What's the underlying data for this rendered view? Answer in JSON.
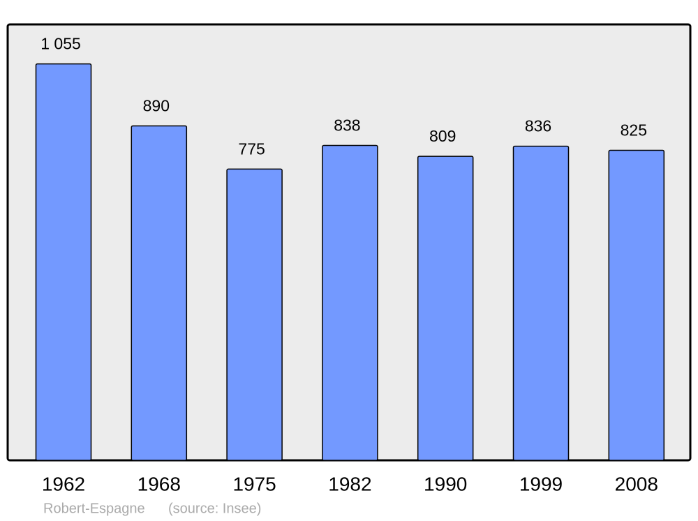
{
  "chart_data": {
    "type": "bar",
    "categories": [
      "1962",
      "1968",
      "1975",
      "1982",
      "1990",
      "1999",
      "2008"
    ],
    "values": [
      1055,
      890,
      775,
      838,
      809,
      836,
      825
    ],
    "value_labels": [
      "1 055",
      "890",
      "775",
      "838",
      "809",
      "836",
      "825"
    ],
    "color": "#7399ff",
    "ylim": [
      0,
      1160
    ],
    "credit": "Robert-Espagne",
    "source": "(source: Insee)"
  }
}
